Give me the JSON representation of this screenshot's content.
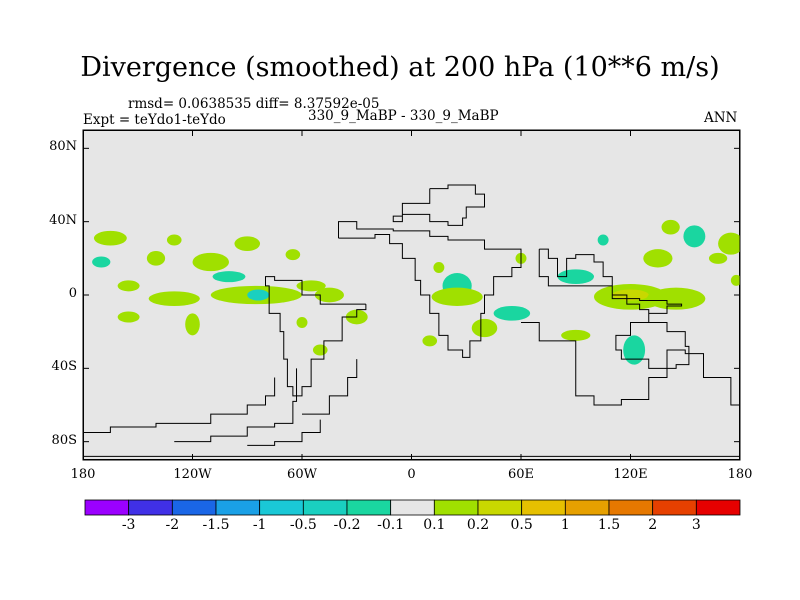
{
  "chart_data": {
    "type": "contour_map",
    "title": "Divergence (smoothed) at 200 hPa (10**6 m/s)",
    "stats": "rmsd= 0.0638535 diff= 8.37592e-05",
    "experiment": "Expt = teYdo1-teYdo",
    "case": "330_9_MaBP - 330_9_MaBP",
    "period": "ANN",
    "y_ticks": [
      "80N",
      "40N",
      "0",
      "40S",
      "80S"
    ],
    "y_values": [
      80,
      40,
      0,
      -40,
      -80
    ],
    "x_ticks": [
      "180",
      "120W",
      "60W",
      "0",
      "60E",
      "120E",
      "180"
    ],
    "x_values": [
      -180,
      -120,
      -60,
      0,
      60,
      120,
      180
    ],
    "xlim": [
      -180,
      180
    ],
    "ylim": [
      -90,
      90
    ],
    "colorbar": {
      "labels": [
        "-3",
        "-2",
        "-1.5",
        "-1",
        "-0.5",
        "-0.2",
        "-0.1",
        "0.1",
        "0.2",
        "0.5",
        "1",
        "1.5",
        "2",
        "3"
      ],
      "colors": [
        "#9b00ff",
        "#4030e6",
        "#1a66e6",
        "#1aa0e6",
        "#1ac8d6",
        "#1ad0c0",
        "#1ad6a0",
        "#e6e6e6",
        "#a0e000",
        "#c8d800",
        "#e6c000",
        "#e6a000",
        "#e67800",
        "#e64000",
        "#e60000"
      ]
    },
    "blobs": [
      {
        "lon": -165,
        "lat": 31,
        "rx": 9,
        "ry": 4,
        "c": 8
      },
      {
        "lon": -130,
        "lat": 30,
        "rx": 4,
        "ry": 3,
        "c": 8
      },
      {
        "lon": -140,
        "lat": 20,
        "rx": 5,
        "ry": 4,
        "c": 8
      },
      {
        "lon": -170,
        "lat": 18,
        "rx": 5,
        "ry": 3,
        "c": 6
      },
      {
        "lon": -110,
        "lat": 18,
        "rx": 10,
        "ry": 5,
        "c": 8
      },
      {
        "lon": -90,
        "lat": 28,
        "rx": 7,
        "ry": 4,
        "c": 8
      },
      {
        "lon": -65,
        "lat": 22,
        "rx": 4,
        "ry": 3,
        "c": 8
      },
      {
        "lon": -100,
        "lat": 10,
        "rx": 9,
        "ry": 3,
        "c": 6
      },
      {
        "lon": -155,
        "lat": 5,
        "rx": 6,
        "ry": 3,
        "c": 8
      },
      {
        "lon": -85,
        "lat": 0,
        "rx": 25,
        "ry": 5,
        "c": 8
      },
      {
        "lon": -84,
        "lat": 0,
        "rx": 6,
        "ry": 3,
        "c": 5
      },
      {
        "lon": -130,
        "lat": -2,
        "rx": 14,
        "ry": 4,
        "c": 8
      },
      {
        "lon": -55,
        "lat": 5,
        "rx": 8,
        "ry": 3,
        "c": 8
      },
      {
        "lon": -45,
        "lat": 0,
        "rx": 8,
        "ry": 4,
        "c": 8
      },
      {
        "lon": -155,
        "lat": -12,
        "rx": 6,
        "ry": 3,
        "c": 8
      },
      {
        "lon": -120,
        "lat": -16,
        "rx": 4,
        "ry": 6,
        "c": 8
      },
      {
        "lon": -60,
        "lat": -15,
        "rx": 3,
        "ry": 3,
        "c": 8
      },
      {
        "lon": -30,
        "lat": -12,
        "rx": 6,
        "ry": 4,
        "c": 8
      },
      {
        "lon": -50,
        "lat": -30,
        "rx": 4,
        "ry": 3,
        "c": 8
      },
      {
        "lon": 25,
        "lat": 5,
        "rx": 8,
        "ry": 7,
        "c": 6
      },
      {
        "lon": 25,
        "lat": -1,
        "rx": 14,
        "ry": 5,
        "c": 8
      },
      {
        "lon": 10,
        "lat": -25,
        "rx": 4,
        "ry": 3,
        "c": 8
      },
      {
        "lon": 40,
        "lat": -18,
        "rx": 7,
        "ry": 5,
        "c": 8
      },
      {
        "lon": 55,
        "lat": -10,
        "rx": 10,
        "ry": 4,
        "c": 6
      },
      {
        "lon": 60,
        "lat": 20,
        "rx": 3,
        "ry": 3,
        "c": 8
      },
      {
        "lon": 90,
        "lat": 10,
        "rx": 10,
        "ry": 4,
        "c": 6
      },
      {
        "lon": 120,
        "lat": -1,
        "rx": 20,
        "ry": 7,
        "c": 8
      },
      {
        "lon": 120,
        "lat": 0,
        "rx": 10,
        "ry": 3,
        "c": 9
      },
      {
        "lon": 145,
        "lat": -2,
        "rx": 16,
        "ry": 6,
        "c": 8
      },
      {
        "lon": 90,
        "lat": -22,
        "rx": 8,
        "ry": 3,
        "c": 8
      },
      {
        "lon": 122,
        "lat": -30,
        "rx": 6,
        "ry": 8,
        "c": 6
      },
      {
        "lon": 155,
        "lat": 32,
        "rx": 6,
        "ry": 6,
        "c": 6
      },
      {
        "lon": 175,
        "lat": 28,
        "rx": 7,
        "ry": 6,
        "c": 8
      },
      {
        "lon": 135,
        "lat": 20,
        "rx": 8,
        "ry": 5,
        "c": 8
      },
      {
        "lon": 168,
        "lat": 20,
        "rx": 5,
        "ry": 3,
        "c": 8
      },
      {
        "lon": 178,
        "lat": 8,
        "rx": 3,
        "ry": 3,
        "c": 8
      },
      {
        "lon": 142,
        "lat": 37,
        "rx": 5,
        "ry": 4,
        "c": 8
      },
      {
        "lon": 105,
        "lat": 30,
        "rx": 3,
        "ry": 3,
        "c": 6
      },
      {
        "lon": 15,
        "lat": 15,
        "rx": 3,
        "ry": 3,
        "c": 8
      }
    ],
    "outlines": [
      [
        [
          -40,
          31
        ],
        [
          -20,
          33
        ],
        [
          -12,
          28
        ],
        [
          -5,
          20
        ],
        [
          2,
          8
        ],
        [
          5,
          0
        ],
        [
          10,
          -10
        ],
        [
          15,
          -22
        ],
        [
          20,
          -30
        ],
        [
          28,
          -34
        ],
        [
          32,
          -25
        ],
        [
          38,
          -10
        ],
        [
          40,
          0
        ],
        [
          45,
          10
        ],
        [
          55,
          15
        ],
        [
          60,
          20
        ],
        [
          60,
          25
        ],
        [
          40,
          30
        ],
        [
          30,
          30
        ],
        [
          20,
          32
        ],
        [
          10,
          35
        ],
        [
          -10,
          36
        ],
        [
          -30,
          40
        ],
        [
          -40,
          31
        ]
      ],
      [
        [
          -25,
          -5
        ],
        [
          -40,
          -5
        ],
        [
          -50,
          0
        ],
        [
          -60,
          8
        ],
        [
          -75,
          10
        ],
        [
          -80,
          5
        ],
        [
          -78,
          -10
        ],
        [
          -72,
          -20
        ],
        [
          -70,
          -35
        ],
        [
          -68,
          -50
        ],
        [
          -65,
          -55
        ],
        [
          -60,
          -50
        ],
        [
          -55,
          -35
        ],
        [
          -48,
          -25
        ],
        [
          -38,
          -12
        ],
        [
          -30,
          -8
        ],
        [
          -25,
          -5
        ]
      ],
      [
        [
          10,
          58
        ],
        [
          20,
          60
        ],
        [
          35,
          55
        ],
        [
          40,
          48
        ],
        [
          30,
          42
        ],
        [
          28,
          38
        ],
        [
          20,
          40
        ],
        [
          10,
          44
        ],
        [
          -5,
          40
        ],
        [
          -10,
          43
        ],
        [
          -5,
          50
        ],
        [
          10,
          58
        ]
      ],
      [
        [
          70,
          25
        ],
        [
          75,
          20
        ],
        [
          80,
          10
        ],
        [
          85,
          20
        ],
        [
          90,
          22
        ],
        [
          100,
          18
        ],
        [
          105,
          10
        ],
        [
          110,
          0
        ],
        [
          118,
          -5
        ],
        [
          125,
          -8
        ],
        [
          130,
          -15
        ],
        [
          140,
          -20
        ],
        [
          150,
          -28
        ],
        [
          152,
          -38
        ],
        [
          145,
          -40
        ],
        [
          130,
          -35
        ],
        [
          115,
          -30
        ],
        [
          112,
          -22
        ],
        [
          120,
          -15
        ],
        [
          130,
          -10
        ],
        [
          140,
          -6
        ],
        [
          148,
          -5
        ],
        [
          140,
          -3
        ],
        [
          125,
          -2
        ],
        [
          110,
          5
        ],
        [
          90,
          5
        ],
        [
          75,
          10
        ],
        [
          70,
          25
        ]
      ],
      [
        [
          60,
          -15
        ],
        [
          70,
          -25
        ],
        [
          90,
          -55
        ],
        [
          100,
          -60
        ],
        [
          115,
          -57
        ],
        [
          130,
          -45
        ],
        [
          140,
          -30
        ],
        [
          150,
          -32
        ],
        [
          160,
          -45
        ],
        [
          175,
          -60
        ],
        [
          180,
          -70
        ]
      ],
      [
        [
          -180,
          -75
        ],
        [
          -165,
          -72
        ],
        [
          -140,
          -70
        ],
        [
          -110,
          -65
        ],
        [
          -90,
          -60
        ],
        [
          -80,
          -55
        ],
        [
          -75,
          -45
        ]
      ],
      [
        [
          -130,
          -80
        ],
        [
          -110,
          -77
        ],
        [
          -90,
          -72
        ],
        [
          -75,
          -70
        ],
        [
          -65,
          -58
        ],
        [
          -63,
          -40
        ]
      ],
      [
        [
          -90,
          -82
        ],
        [
          -75,
          -80
        ],
        [
          -60,
          -75
        ],
        [
          -50,
          -68
        ]
      ],
      [
        [
          -60,
          -65
        ],
        [
          -45,
          -55
        ],
        [
          -35,
          -45
        ],
        [
          -30,
          -35
        ]
      ],
      [
        [
          -180,
          -88
        ],
        [
          -90,
          -88
        ],
        [
          0,
          -88
        ],
        [
          90,
          -88
        ],
        [
          180,
          -88
        ]
      ]
    ]
  }
}
